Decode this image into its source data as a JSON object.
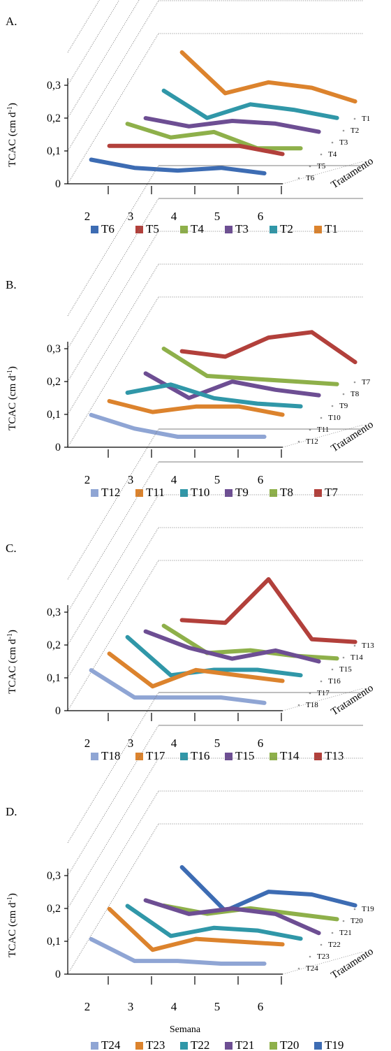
{
  "colors": {
    "A": [
      "#3D6CB3",
      "#B2403B",
      "#8EB04A",
      "#6D4E93",
      "#3097A8",
      "#DC832D"
    ],
    "B": [
      "#8FA5D4",
      "#DC832D",
      "#3097A8",
      "#6D4E93",
      "#8EB04A",
      "#B2403B"
    ],
    "C": [
      "#8FA5D4",
      "#DC832D",
      "#3097A8",
      "#6D4E93",
      "#8EB04A",
      "#B2403B"
    ],
    "D": [
      "#8FA5D4",
      "#DC832D",
      "#3097A8",
      "#6D4E93",
      "#8EB04A",
      "#3D6CB3"
    ]
  },
  "chart_data": [
    {
      "panel": "A.",
      "type": "line",
      "projection": "3d",
      "ylabel": "TCAC (cm d-1)",
      "yticks": [
        "0",
        "0,1",
        "0,2",
        "0,3"
      ],
      "ylim": [
        0,
        0.3
      ],
      "x": [
        "2",
        "3",
        "4",
        "5",
        "6"
      ],
      "zlabel": "Tratamento",
      "zticks": [
        "T6",
        "T5",
        "T4",
        "T3",
        "T2",
        "T1"
      ],
      "legend": [
        "T6",
        "T5",
        "T4",
        "T3",
        "T2",
        "T1"
      ],
      "series": [
        {
          "name": "T6",
          "values": [
            0.07,
            0.04,
            0.03,
            0.04,
            0.02
          ]
        },
        {
          "name": "T5",
          "values": [
            0.09,
            0.09,
            0.09,
            0.09,
            0.06
          ]
        },
        {
          "name": "T4",
          "values": [
            0.14,
            0.09,
            0.11,
            0.05,
            0.05
          ]
        },
        {
          "name": "T3",
          "values": [
            0.13,
            0.1,
            0.12,
            0.11,
            0.08
          ]
        },
        {
          "name": "T2",
          "values": [
            0.2,
            0.1,
            0.15,
            0.13,
            0.1
          ]
        },
        {
          "name": "T1",
          "values": [
            0.31,
            0.16,
            0.2,
            0.18,
            0.13
          ]
        }
      ]
    },
    {
      "panel": "B.",
      "type": "line",
      "projection": "3d",
      "ylabel": "TCAC (cm d-1)",
      "yticks": [
        "0",
        "0,1",
        "0,2",
        "0,3"
      ],
      "ylim": [
        0,
        0.3
      ],
      "x": [
        "2",
        "3",
        "4",
        "5",
        "6"
      ],
      "zlabel": "Tratamento",
      "zticks": [
        "T12",
        "T11",
        "T10",
        "T9",
        "T8",
        "T7"
      ],
      "legend": [
        "T12",
        "T11",
        "T10",
        "T9",
        "T8",
        "T7"
      ],
      "series": [
        {
          "name": "T12",
          "values": [
            0.1,
            0.05,
            0.02,
            0.02,
            0.02
          ]
        },
        {
          "name": "T11",
          "values": [
            0.12,
            0.08,
            0.1,
            0.1,
            0.07
          ]
        },
        {
          "name": "T10",
          "values": [
            0.12,
            0.15,
            0.1,
            0.08,
            0.07
          ]
        },
        {
          "name": "T9",
          "values": [
            0.16,
            0.07,
            0.13,
            0.1,
            0.08
          ]
        },
        {
          "name": "T8",
          "values": [
            0.22,
            0.12,
            0.11,
            0.1,
            0.09
          ]
        },
        {
          "name": "T7",
          "values": [
            0.18,
            0.16,
            0.23,
            0.25,
            0.14
          ]
        }
      ]
    },
    {
      "panel": "C.",
      "type": "line",
      "projection": "3d",
      "ylabel": "TCAC (cm d-1)",
      "yticks": [
        "0",
        "0,1",
        "0,2",
        "0,3"
      ],
      "ylim": [
        0,
        0.3
      ],
      "x": [
        "2",
        "3",
        "4",
        "5",
        "6"
      ],
      "zlabel": "Tratamento",
      "zticks": [
        "T18",
        "T17",
        "T16",
        "T15",
        "T14",
        "T13"
      ],
      "legend": [
        "T18",
        "T17",
        "T16",
        "T15",
        "T14",
        "T13"
      ],
      "series": [
        {
          "name": "T18",
          "values": [
            0.13,
            0.03,
            0.03,
            0.03,
            0.01
          ]
        },
        {
          "name": "T17",
          "values": [
            0.16,
            0.04,
            0.1,
            0.08,
            0.06
          ]
        },
        {
          "name": "T16",
          "values": [
            0.19,
            0.05,
            0.07,
            0.07,
            0.05
          ]
        },
        {
          "name": "T15",
          "values": [
            0.18,
            0.12,
            0.08,
            0.11,
            0.07
          ]
        },
        {
          "name": "T14",
          "values": [
            0.17,
            0.07,
            0.08,
            0.06,
            0.05
          ]
        },
        {
          "name": "T13",
          "values": [
            0.16,
            0.15,
            0.31,
            0.09,
            0.08
          ]
        }
      ]
    },
    {
      "panel": "D.",
      "type": "line",
      "projection": "3d",
      "ylabel": "TCAC (cm d-1)",
      "yticks": [
        "0",
        "0,1",
        "0,2",
        "0,3"
      ],
      "ylim": [
        0,
        0.3
      ],
      "x": [
        "2",
        "3",
        "4",
        "5",
        "6"
      ],
      "xlabel": "Semana",
      "zlabel": "Tratamento",
      "zticks": [
        "T24",
        "T23",
        "T22",
        "T21",
        "T20",
        "T19"
      ],
      "legend": [
        "T24",
        "T23",
        "T22",
        "T21",
        "T20",
        "T19"
      ],
      "series": [
        {
          "name": "T24",
          "values": [
            0.11,
            0.03,
            0.03,
            0.02,
            0.02
          ]
        },
        {
          "name": "T23",
          "values": [
            0.19,
            0.04,
            0.08,
            0.07,
            0.06
          ]
        },
        {
          "name": "T22",
          "values": [
            0.17,
            0.06,
            0.09,
            0.08,
            0.05
          ]
        },
        {
          "name": "T21",
          "values": [
            0.16,
            0.11,
            0.13,
            0.11,
            0.04
          ]
        },
        {
          "name": "T20",
          "values": [
            0.11,
            0.08,
            0.1,
            0.08,
            0.06
          ]
        },
        {
          "name": "T19",
          "values": [
            0.22,
            0.06,
            0.13,
            0.12,
            0.08
          ]
        }
      ]
    }
  ]
}
